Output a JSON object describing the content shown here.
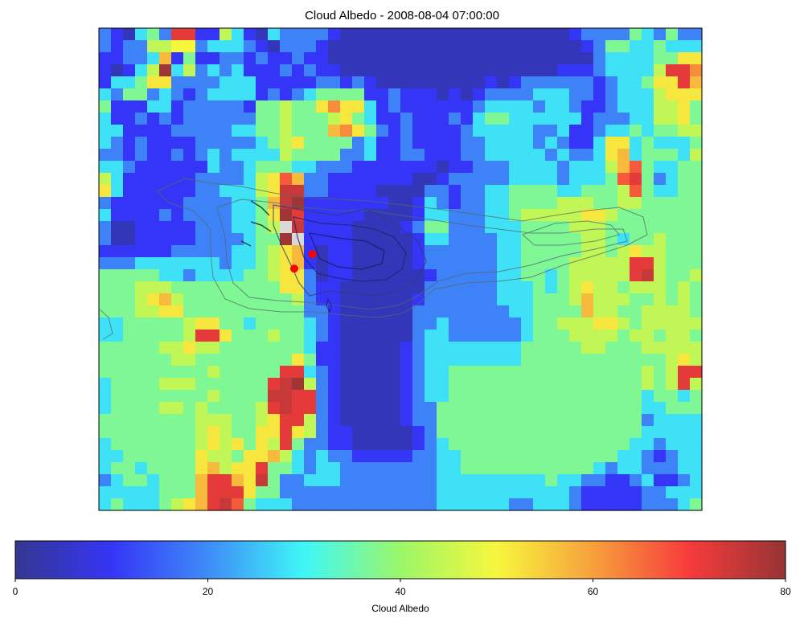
{
  "chart_data": {
    "type": "heatmap",
    "title": "Cloud Albedo - 2008-08-04 07:00:00",
    "grid_rows": 40,
    "grid_cols": 50,
    "masked_color": "#d9d9d9",
    "rows": [
      "CBADECLLBBFDBADCCCCBAAAAAAAAAAAAAAAAAAABCCCCEDCECC",
      "CBCCFFIICDDDCBACCCBAAAAAAAAAAAAAAAAAAAAABCEEDDEDDD",
      "BBCCDHBEBBCCBCBBCBBAAAAAAAAAAAAAAAAAAAAAACDDDDEEGG",
      "BABDFNDFCDCDBBBCBCBBAAAAAAAAAAAAAAAAAABBBCDDDDFLLJ",
      "BDDEGGCCCCDDDBBBBBCCBCBAAAAAAAAABABCCCCCCBCDDEGGLH",
      "DCEECDCBCDDDDBCBCDEEEEBBCBBBABABCCCCDDDCCBCDDDFGGG",
      "EBBBDDBCCCCCBEEFEEGJGGDBCBBBBBBCDDDDCDDCBBCDDDFFGE",
      "DBBCBCBCCCCCCEEFEEEFGEDBBCBBBCBDEEDDDDDDBCCCDDFFGE",
      "DDBBBBCCCCCDDEEFEEEHJGECBCBBBBCDDDDDCCDBBCDDEDEEFF",
      "DCBCBBBBCCCCCDEFGEEEECDBBCBBBBCCDDDDCDCBBDGGDEDDDE",
      "CCBCBBCBCDCDDDDFEEEECCDBBCCBBBCCDDDDDCDCCDGHDEEEDF",
      "DDCBBBBBBDCCDEEEDDCCCBBBBBBBABBCCCDDDDCDDDFHKEDDEE",
      "FDBBBBBBCCCCDFGKHCCBBBBBBBAABCCCCCDDDDCDDDEKLECDEE",
      "GDBBBBBBCCDDDFGMMCCBBBBAAAACCBCCDDEEEEDDEEEFKEDDEE",
      "CBBBBBBCCCCDDEHMNBBBBBBBAABDCBCCDDEEEEFFFEEFFEEEEE",
      "DBBBBCBCCCCDDEGNLBBBBBAAAABDDCCCDDEFFFFFGGFEEEEEEE",
      "CAABBBBBCCCDDEFXMBBBBAAAABCEECCCDDDEEEEFFFEEEEEEEE",
      "CAABBBBBCCCCDEENXBBBBAAAAABDDCCCCDDEEEEEFFEDEEFEEE",
      "BBBBBBCCCCCDDEFGHBABBAAAAABCCCCCCDDEEEEEFFEFGFFEEE",
      "CCCDDDDDDDCDDEFGHBABBAAAAABCCCCCCDDEEEEFFFFFLLFEEE",
      "EEEEEDDCDDDDEEFGGCABBAAAAAABCCCCCDDEEDEFFFFFLMFEEF",
      "EEEFFFEEEEEEEEEGGCBBAAAAAAACCCCCCDDDEDEFGFFEFFFEFE",
      "EEEFGHFEEEEEEEEEFCBBAAAAAABCCCCCCDDDEEEFHFFFEEFEFE",
      "EEEFFGGEEEEEEEEEECCBAAAAAACCCCCCCCDDEEEEHFFEEFFFFE",
      "DDEEEEEFGGEEDEEEEDCBAAAAAACCDCCCCCCDEEFFFGGFEFFFFF",
      "DDEEEEEFLLGEEEFEEDCBAAAAAACDDCCCCCCDEEEFFFFEFFEFFE",
      "EEEEEFFGFFEEEEEEEDBBAAAAABCDDDDDDDDEEEEEFFEEEFFFFF",
      "EEEEEEFFEEEEEEEEGEBBAAAAABCDDDDDDDDEEEEEEEEEEEEFGF",
      "EEEEEEEEEFEEEEELLDCBAAAAABCDDEEEEEEEEEEEEEEEEFEFLL",
      "DEEEEFFFEEEEEELMNFCBAAAAABCDDEEEEEEEEEEEEEEEEFEFLF",
      "DEEEEEEEEFEEEEMMLLCBAAAAABCDDEEEEEEEEEEEEEEEEDEEDE",
      "DEEEEFFEFEEEEFLMLLCBAAAAABCCEEEEEEEEEEEEEEEEEDDEEE",
      "EEEEEEEEFFFEEFGLLFCBAAAAABCCEEEEEEEEEEEEEEEEECDDDD",
      "EEEEEEEEFGFEEGGLGFCBBAAAAABCEEEEEEEEEEEEEEEEEDDDDD",
      "DEEEEEEEFGFGEGFLECCBBAAAAABCDEEEEEEEEEEEEEEEDDCDDD",
      "DDEEEEEEGFFEGGHFDCDCCBBBBBCCDDEEEEEEEEEEEEEDDCBCDD",
      "DEEDEEEEGHFGGLEEDCDDCCCCCCCCDDEEEEEEEEEEEDCDDCCCDD",
      "CDEEDEEEHLLHGMECCDDDCCCCCCCCDDDDDDDDDEDDCCBBCDBBCD",
      "DDDDDEEEHLLLGEECCCCCCCCCCCCCDDDDDDDDDDDCBBBBBCCDDD",
      "DEDDDEFGHLMKEDDDCCCCCCCCCCCCDDDDDDCCDDDCBBBBBCCCDE"
    ],
    "row_legend": {
      "A": 4,
      "B": 10,
      "C": 19,
      "D": 28,
      "E": 37,
      "F": 44,
      "G": 52,
      "H": 57,
      "I": 50,
      "J": 62,
      "K": 67,
      "L": 72,
      "M": 75,
      "N": 79,
      "X": null
    },
    "markers": [
      {
        "col": 17.7,
        "row": 18.75
      },
      {
        "col": 16.2,
        "row": 19.95
      }
    ],
    "colorbar": {
      "label": "Cloud Albedo",
      "min": 0,
      "max": 80,
      "ticks": [
        "0",
        "20",
        "40",
        "60",
        "80"
      ],
      "colormap": "jet"
    }
  }
}
